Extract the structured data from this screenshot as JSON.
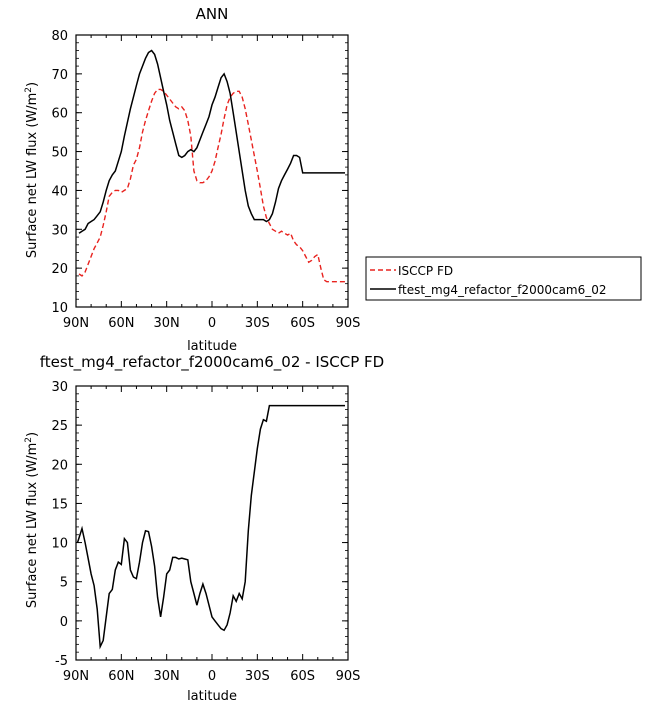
{
  "chart_data": [
    {
      "type": "line",
      "title": "ANN",
      "xlabel": "latitude",
      "ylabel": "Surface net LW flux (W/m",
      "ylabel_sup": "2",
      "ylabel_tail": ")",
      "xlim": [
        90,
        -90
      ],
      "ylim": [
        10,
        80
      ],
      "x_ticks": [
        90,
        60,
        30,
        0,
        -30,
        -60,
        -90
      ],
      "x_tick_labels": [
        "90N",
        "60N",
        "30N",
        "0",
        "30S",
        "60S",
        "90S"
      ],
      "y_ticks": [
        10,
        20,
        30,
        40,
        50,
        60,
        70,
        80
      ],
      "y_tick_labels": [
        "10",
        "20",
        "30",
        "40",
        "50",
        "60",
        "70",
        "80"
      ],
      "legend_position": "right-bottom (outside plot)",
      "grid": false,
      "series": [
        {
          "name": "ISCCP FD",
          "color": "#e8231f",
          "dash": "dashed",
          "x": [
            88,
            86,
            84,
            82,
            80,
            78,
            76,
            74,
            72,
            70,
            68,
            66,
            64,
            62,
            60,
            58,
            56,
            54,
            52,
            50,
            48,
            46,
            44,
            42,
            40,
            38,
            36,
            34,
            32,
            30,
            28,
            26,
            24,
            22,
            20,
            18,
            16,
            14,
            12,
            10,
            8,
            6,
            4,
            2,
            0,
            -2,
            -4,
            -6,
            -8,
            -10,
            -12,
            -14,
            -16,
            -18,
            -20,
            -22,
            -24,
            -26,
            -28,
            -30,
            -32,
            -34,
            -36,
            -38,
            -40,
            -42,
            -44,
            -46,
            -48,
            -50,
            -52,
            -54,
            -56,
            -58,
            -60,
            -62,
            -64,
            -66,
            -68,
            -70,
            -72,
            -74,
            -76,
            -78,
            -80,
            -82,
            -84,
            -86,
            -88,
            -90
          ],
          "y": [
            18.5,
            18,
            19,
            21,
            23,
            25,
            26.5,
            28,
            31,
            34.5,
            38.5,
            39.5,
            40,
            40,
            39.5,
            40,
            40.5,
            43,
            46.5,
            48,
            51,
            55,
            58,
            60.5,
            63,
            65,
            66,
            66,
            65.5,
            64.5,
            63.5,
            62.5,
            61.5,
            61,
            61.5,
            60.5,
            58,
            54,
            45,
            42.5,
            42,
            42,
            42.5,
            43.5,
            45,
            47.5,
            51,
            54.5,
            58.5,
            62,
            64,
            65,
            65.5,
            65.5,
            64,
            61,
            57,
            53,
            49,
            45,
            40.5,
            36,
            33,
            31.5,
            30,
            29.5,
            29,
            29.5,
            29,
            28.5,
            29,
            27,
            26,
            25.5,
            24.5,
            23,
            21.5,
            22,
            23,
            23.5,
            20,
            17,
            16.5,
            16.5,
            16.5,
            16.5,
            16.5,
            16.5,
            16.5,
            16.5
          ]
        },
        {
          "name": "ftest_mg4_refactor_f2000cam6_02",
          "color": "#000000",
          "dash": "solid",
          "x": [
            88,
            86,
            84,
            82,
            80,
            78,
            76,
            74,
            72,
            70,
            68,
            66,
            64,
            62,
            60,
            58,
            56,
            54,
            52,
            50,
            48,
            46,
            44,
            42,
            40,
            38,
            36,
            34,
            32,
            30,
            28,
            26,
            24,
            22,
            20,
            18,
            16,
            14,
            12,
            10,
            8,
            6,
            4,
            2,
            0,
            -2,
            -4,
            -6,
            -8,
            -10,
            -12,
            -14,
            -16,
            -18,
            -20,
            -22,
            -24,
            -26,
            -28,
            -30,
            -32,
            -34,
            -36,
            -38,
            -40,
            -42,
            -44,
            -46,
            -48,
            -50,
            -52,
            -54,
            -56,
            -58,
            -60,
            -62,
            -64,
            -66,
            -68,
            -70,
            -72,
            -74,
            -76,
            -78,
            -80,
            -82,
            -84,
            -86,
            -88
          ],
          "y": [
            29,
            29.5,
            30,
            31.5,
            32,
            32.5,
            33.5,
            34.5,
            37,
            40,
            42.5,
            44,
            45,
            47.5,
            50,
            54,
            57.5,
            61,
            64,
            67,
            70,
            72,
            74,
            75.5,
            76,
            75,
            72.5,
            69,
            65.5,
            62,
            58,
            55,
            52,
            49,
            48.5,
            49,
            50,
            50.5,
            50,
            51,
            53,
            55,
            57,
            59,
            62,
            64,
            66.5,
            69,
            70,
            68,
            65,
            60,
            55,
            50,
            45,
            40,
            36,
            34,
            32.5,
            32.5,
            32.5,
            32.5,
            32,
            32.5,
            34,
            37,
            40.5,
            42.5,
            44,
            45.5,
            47,
            49,
            49,
            48.5,
            44.5,
            44.5,
            44.5,
            44.5,
            44.5,
            44.5,
            44.5,
            44.5,
            44.5,
            44.5,
            44.5,
            44.5,
            44.5,
            44.5,
            44.5
          ]
        }
      ]
    },
    {
      "type": "line",
      "title": "ftest_mg4_refactor_f2000cam6_02 - ISCCP FD",
      "xlabel": "latitude",
      "ylabel": "Surface net LW flux (W/m",
      "ylabel_sup": "2",
      "ylabel_tail": ")",
      "xlim": [
        90,
        -90
      ],
      "ylim": [
        -5,
        30
      ],
      "x_ticks": [
        90,
        60,
        30,
        0,
        -30,
        -60,
        -90
      ],
      "x_tick_labels": [
        "90N",
        "60N",
        "30N",
        "0",
        "30S",
        "60S",
        "90S"
      ],
      "y_ticks": [
        -5,
        0,
        5,
        10,
        15,
        20,
        25,
        30
      ],
      "y_tick_labels": [
        "-5",
        "0",
        "5",
        "10",
        "15",
        "20",
        "25",
        "30"
      ],
      "grid": false,
      "series": [
        {
          "color": "#000000",
          "dash": "solid",
          "x": [
            89,
            86,
            84,
            82,
            80,
            78,
            76,
            74,
            72,
            70,
            68,
            66,
            64,
            62,
            60,
            58,
            56,
            54,
            52,
            50,
            48,
            46,
            44,
            42,
            40,
            38,
            36,
            34,
            32,
            30,
            28,
            26,
            24,
            22,
            20,
            18,
            16,
            14,
            12,
            10,
            8,
            6,
            4,
            2,
            0,
            -2,
            -4,
            -6,
            -8,
            -10,
            -12,
            -14,
            -16,
            -18,
            -20,
            -22,
            -24,
            -26,
            -28,
            -30,
            -32,
            -34,
            -36,
            -38,
            -40,
            -42,
            -44,
            -46,
            -48,
            -50,
            -52,
            -54,
            -56,
            -58,
            -60,
            -62,
            -64,
            -66,
            -68,
            -70,
            -72,
            -74,
            -76,
            -78,
            -80,
            -82,
            -84,
            -86,
            -88
          ],
          "y": [
            10,
            11.8,
            10,
            8,
            6,
            4.5,
            1.5,
            -3.3,
            -2.5,
            0.5,
            3.5,
            4,
            6.5,
            7.5,
            7.2,
            10.5,
            10,
            6.5,
            5.6,
            5.4,
            7.5,
            10,
            11.5,
            11.4,
            9.5,
            7,
            3,
            0.5,
            3,
            6,
            6.5,
            8.1,
            8.1,
            7.9,
            8,
            7.9,
            7.8,
            5,
            3.5,
            2,
            3.5,
            4.7,
            3.5,
            2,
            0.5,
            0,
            -0.5,
            -1,
            -1.2,
            -0.5,
            1,
            3.2,
            2.5,
            3.5,
            2.8,
            5,
            11.5,
            16,
            19,
            22,
            24.5,
            25.7,
            25.5,
            27.5,
            27.5,
            27.5,
            27.5,
            27.5,
            27.5,
            27.5,
            27.5,
            27.5,
            27.5,
            27.5,
            27.5,
            27.5,
            27.5,
            27.5,
            27.5,
            27.5,
            27.5,
            27.5,
            27.5,
            27.5,
            27.5,
            27.5,
            27.5,
            27.5,
            27.5
          ]
        }
      ]
    }
  ]
}
